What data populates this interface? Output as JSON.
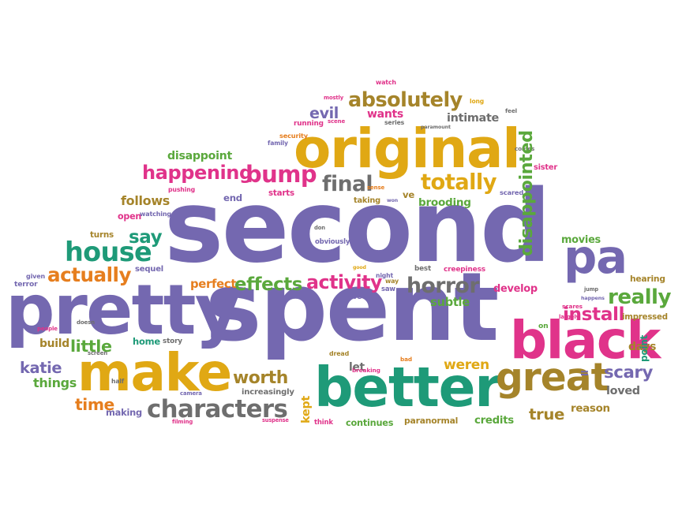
{
  "palette": {
    "purple": "#7468b0",
    "gold": "#e0a814",
    "teal": "#1e9a78",
    "green": "#5aa83c",
    "magenta": "#e0338a",
    "orange": "#e67e1e",
    "gray": "#6e6e6e",
    "brown": "#a5842a"
  },
  "words": [
    {
      "text": "second",
      "color": "purple",
      "orientation": "horizontal"
    },
    {
      "text": "spent",
      "color": "purple",
      "orientation": "horizontal"
    },
    {
      "text": "pretty",
      "color": "purple",
      "orientation": "horizontal"
    },
    {
      "text": "original",
      "color": "gold",
      "orientation": "horizontal"
    },
    {
      "text": "better",
      "color": "teal",
      "orientation": "horizontal"
    },
    {
      "text": "black",
      "color": "magenta",
      "orientation": "horizontal"
    },
    {
      "text": "make",
      "color": "gold",
      "orientation": "horizontal"
    },
    {
      "text": "great",
      "color": "brown",
      "orientation": "horizontal"
    },
    {
      "text": "pa",
      "color": "purple",
      "orientation": "horizontal"
    },
    {
      "text": "house",
      "color": "teal",
      "orientation": "horizontal"
    },
    {
      "text": "characters",
      "color": "gray",
      "orientation": "horizontal"
    },
    {
      "text": "happening",
      "color": "magenta",
      "orientation": "horizontal"
    },
    {
      "text": "bump",
      "color": "magenta",
      "orientation": "horizontal"
    },
    {
      "text": "totally",
      "color": "gold",
      "orientation": "horizontal"
    },
    {
      "text": "absolutely",
      "color": "brown",
      "orientation": "horizontal"
    },
    {
      "text": "final",
      "color": "gray",
      "orientation": "horizontal"
    },
    {
      "text": "really",
      "color": "green",
      "orientation": "horizontal"
    },
    {
      "text": "horror",
      "color": "gray",
      "orientation": "horizontal"
    },
    {
      "text": "actually",
      "color": "orange",
      "orientation": "horizontal"
    },
    {
      "text": "effects",
      "color": "green",
      "orientation": "horizontal"
    },
    {
      "text": "activity",
      "color": "magenta",
      "orientation": "horizontal"
    },
    {
      "text": "evil",
      "color": "purple",
      "orientation": "horizontal"
    },
    {
      "text": "worth",
      "color": "brown",
      "orientation": "horizontal"
    },
    {
      "text": "weren",
      "color": "gold",
      "orientation": "horizontal"
    },
    {
      "text": "install",
      "color": "magenta",
      "orientation": "horizontal"
    },
    {
      "text": "true",
      "color": "brown",
      "orientation": "horizontal"
    },
    {
      "text": "scary",
      "color": "purple",
      "orientation": "horizontal"
    },
    {
      "text": "say",
      "color": "teal",
      "orientation": "horizontal"
    },
    {
      "text": "little",
      "color": "green",
      "orientation": "horizontal"
    },
    {
      "text": "katie",
      "color": "purple",
      "orientation": "horizontal"
    },
    {
      "text": "time",
      "color": "orange",
      "orientation": "horizontal"
    },
    {
      "text": "things",
      "color": "green",
      "orientation": "horizontal"
    },
    {
      "text": "intimate",
      "color": "gray",
      "orientation": "horizontal"
    },
    {
      "text": "wants",
      "color": "magenta",
      "orientation": "horizontal"
    },
    {
      "text": "disappoint",
      "color": "green",
      "orientation": "horizontal"
    },
    {
      "text": "follows",
      "color": "brown",
      "orientation": "horizontal"
    },
    {
      "text": "brooding",
      "color": "green",
      "orientation": "horizontal"
    },
    {
      "text": "subtle",
      "color": "green",
      "orientation": "horizontal"
    },
    {
      "text": "develop",
      "color": "magenta",
      "orientation": "horizontal"
    },
    {
      "text": "perfect",
      "color": "orange",
      "orientation": "horizontal"
    },
    {
      "text": "build",
      "color": "brown",
      "orientation": "horizontal"
    },
    {
      "text": "home",
      "color": "teal",
      "orientation": "horizontal"
    },
    {
      "text": "movies",
      "color": "green",
      "orientation": "horizontal"
    },
    {
      "text": "impressed",
      "color": "brown",
      "orientation": "horizontal"
    },
    {
      "text": "days",
      "color": "brown",
      "orientation": "horizontal"
    },
    {
      "text": "loved",
      "color": "gray",
      "orientation": "horizontal"
    },
    {
      "text": "reason",
      "color": "brown",
      "orientation": "horizontal"
    },
    {
      "text": "credits",
      "color": "green",
      "orientation": "horizontal"
    },
    {
      "text": "continues",
      "color": "green",
      "orientation": "horizontal"
    },
    {
      "text": "paranormal",
      "color": "brown",
      "orientation": "horizontal"
    },
    {
      "text": "increasingly",
      "color": "gray",
      "orientation": "horizontal"
    },
    {
      "text": "making",
      "color": "purple",
      "orientation": "horizontal"
    },
    {
      "text": "sequel",
      "color": "purple",
      "orientation": "horizontal"
    },
    {
      "text": "hearing",
      "color": "brown",
      "orientation": "horizontal"
    },
    {
      "text": "creepiness",
      "color": "magenta",
      "orientation": "horizontal"
    },
    {
      "text": "let",
      "color": "gray",
      "orientation": "horizontal"
    },
    {
      "text": "end",
      "color": "purple",
      "orientation": "horizontal"
    },
    {
      "text": "starts",
      "color": "magenta",
      "orientation": "horizontal"
    },
    {
      "text": "ve",
      "color": "brown",
      "orientation": "horizontal"
    },
    {
      "text": "taking",
      "color": "brown",
      "orientation": "horizontal"
    },
    {
      "text": "open",
      "color": "magenta",
      "orientation": "horizontal"
    },
    {
      "text": "watching",
      "color": "purple",
      "orientation": "horizontal"
    },
    {
      "text": "turns",
      "color": "brown",
      "orientation": "horizontal"
    },
    {
      "text": "pushing",
      "color": "magenta",
      "orientation": "horizontal"
    },
    {
      "text": "running",
      "color": "magenta",
      "orientation": "horizontal"
    },
    {
      "text": "security",
      "color": "orange",
      "orientation": "horizontal"
    },
    {
      "text": "family",
      "color": "purple",
      "orientation": "horizontal"
    },
    {
      "text": "watch",
      "color": "magenta",
      "orientation": "horizontal"
    },
    {
      "text": "mostly",
      "color": "magenta",
      "orientation": "horizontal"
    },
    {
      "text": "scene",
      "color": "magenta",
      "orientation": "horizontal"
    },
    {
      "text": "series",
      "color": "gray",
      "orientation": "horizontal"
    },
    {
      "text": "paramount",
      "color": "gray",
      "orientation": "horizontal"
    },
    {
      "text": "long",
      "color": "gold",
      "orientation": "horizontal"
    },
    {
      "text": "feel",
      "color": "gray",
      "orientation": "horizontal"
    },
    {
      "text": "comes",
      "color": "gray",
      "orientation": "horizontal"
    },
    {
      "text": "sister",
      "color": "magenta",
      "orientation": "horizontal"
    },
    {
      "text": "scared",
      "color": "purple",
      "orientation": "horizontal"
    },
    {
      "text": "sense",
      "color": "orange",
      "orientation": "horizontal"
    },
    {
      "text": "won",
      "color": "purple",
      "orientation": "horizontal"
    },
    {
      "text": "obviously",
      "color": "purple",
      "orientation": "horizontal"
    },
    {
      "text": "don",
      "color": "gray",
      "orientation": "horizontal"
    },
    {
      "text": "given",
      "color": "purple",
      "orientation": "horizontal"
    },
    {
      "text": "terror",
      "color": "purple",
      "orientation": "horizontal"
    },
    {
      "text": "people",
      "color": "magenta",
      "orientation": "horizontal"
    },
    {
      "text": "doesn",
      "color": "gray",
      "orientation": "horizontal"
    },
    {
      "text": "story",
      "color": "gray",
      "orientation": "horizontal"
    },
    {
      "text": "screen",
      "color": "gray",
      "orientation": "horizontal"
    },
    {
      "text": "half",
      "color": "gray",
      "orientation": "horizontal"
    },
    {
      "text": "camera",
      "color": "purple",
      "orientation": "horizontal"
    },
    {
      "text": "filming",
      "color": "magenta",
      "orientation": "horizontal"
    },
    {
      "text": "suspense",
      "color": "magenta",
      "orientation": "horizontal"
    },
    {
      "text": "think",
      "color": "magenta",
      "orientation": "horizontal"
    },
    {
      "text": "dread",
      "color": "brown",
      "orientation": "horizontal"
    },
    {
      "text": "breaking",
      "color": "magenta",
      "orientation": "horizontal"
    },
    {
      "text": "bad",
      "color": "orange",
      "orientation": "horizontal"
    },
    {
      "text": "good",
      "color": "gold",
      "orientation": "horizontal"
    },
    {
      "text": "night",
      "color": "purple",
      "orientation": "horizontal"
    },
    {
      "text": "way",
      "color": "brown",
      "orientation": "horizontal"
    },
    {
      "text": "saw",
      "color": "purple",
      "orientation": "horizontal"
    },
    {
      "text": "love",
      "color": "purple",
      "orientation": "horizontal"
    },
    {
      "text": "best",
      "color": "gray",
      "orientation": "horizontal"
    },
    {
      "text": "scares",
      "color": "magenta",
      "orientation": "horizontal"
    },
    {
      "text": "happens",
      "color": "purple",
      "orientation": "horizontal"
    },
    {
      "text": "jump",
      "color": "gray",
      "orientation": "horizontal"
    },
    {
      "text": "largely",
      "color": "magenta",
      "orientation": "horizontal"
    },
    {
      "text": "on",
      "color": "green",
      "orientation": "horizontal"
    },
    {
      "text": "disappointed",
      "color": "green",
      "orientation": "vertical"
    },
    {
      "text": "kept",
      "color": "gold",
      "orientation": "vertical"
    },
    {
      "text": "point",
      "color": "teal",
      "orientation": "vertical"
    },
    {
      "text": "ll",
      "color": "purple",
      "orientation": "vertical"
    }
  ]
}
